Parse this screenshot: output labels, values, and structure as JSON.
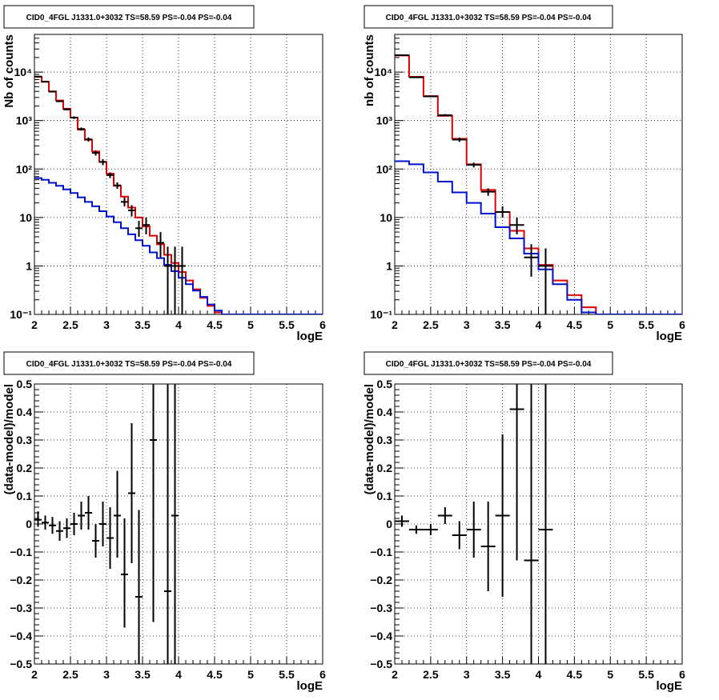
{
  "colors": {
    "data": "#000000",
    "total_model": "#e00000",
    "component_model": "#0010d0",
    "grid": "#000000"
  },
  "chart_data": [
    {
      "type": "line",
      "title": "CID0_4FGL J1331.0+3032 TS=58.59 PS=-0.04 PS=-0.04",
      "xlabel": "logE",
      "ylabel": "Nb of counts",
      "xlim": [
        2,
        6
      ],
      "ylim": [
        0.1,
        60000
      ],
      "log_y": true,
      "grid": true,
      "x_ticks": [
        "2",
        "2.5",
        "3",
        "3.5",
        "4",
        "4.5",
        "5",
        "5.5",
        "6"
      ],
      "y_ticks": [
        {
          "value": 0.1,
          "label": "10⁻¹"
        },
        {
          "value": 1,
          "label": "1"
        },
        {
          "value": 10,
          "label": "10"
        },
        {
          "value": 100,
          "label": "10²"
        },
        {
          "value": 1000,
          "label": "10³"
        },
        {
          "value": 10000,
          "label": "10⁴"
        }
      ],
      "bin_edges": [
        2.0,
        2.1,
        2.2,
        2.3,
        2.4,
        2.5,
        2.6,
        2.7,
        2.8,
        2.9,
        3.0,
        3.1,
        3.2,
        3.3,
        3.4,
        3.5,
        3.6,
        3.7,
        3.8,
        3.9,
        4.0,
        4.1,
        4.2,
        4.3,
        4.4,
        4.5,
        4.6,
        4.7,
        4.8,
        4.9,
        5.0,
        5.1,
        5.2,
        5.3,
        5.4,
        5.5,
        5.6,
        5.7,
        5.8,
        5.9,
        6.0
      ],
      "series": [
        {
          "role": "total_model",
          "values": [
            8000,
            6300,
            4000,
            2600,
            1750,
            1150,
            650,
            400,
            230,
            140,
            80,
            45,
            27,
            16,
            10,
            6.5,
            4.2,
            2.8,
            1.7,
            1.15,
            0.75,
            0.5,
            0.33,
            0.22,
            0.15,
            0.11,
            0.1,
            0.1,
            0.1,
            0.1,
            0.1,
            0.1,
            0.1,
            0.1,
            0.1,
            0.1,
            0.1,
            0.1,
            0.1,
            0.1
          ]
        },
        {
          "role": "component_model",
          "values": [
            65,
            60,
            52,
            45,
            38,
            32,
            26,
            21,
            17,
            13.5,
            10.5,
            8,
            6,
            4.5,
            3.4,
            2.6,
            1.9,
            1.45,
            1.05,
            0.78,
            0.57,
            0.42,
            0.31,
            0.23,
            0.16,
            0.12,
            0.1,
            0.1,
            0.1,
            0.1,
            0.1,
            0.1,
            0.1,
            0.1,
            0.1,
            0.1,
            0.1,
            0.1,
            0.1,
            0.1
          ]
        },
        {
          "role": "data",
          "points": [
            {
              "x": 2.05,
              "y": 8100,
              "lo": 7930,
              "hi": 8270
            },
            {
              "x": 2.15,
              "y": 6350,
              "lo": 6190,
              "hi": 6510
            },
            {
              "x": 2.25,
              "y": 3950,
              "lo": 3820,
              "hi": 4080
            },
            {
              "x": 2.35,
              "y": 2500,
              "lo": 2400,
              "hi": 2600
            },
            {
              "x": 2.45,
              "y": 1700,
              "lo": 1620,
              "hi": 1780
            },
            {
              "x": 2.55,
              "y": 1150,
              "lo": 1080,
              "hi": 1220
            },
            {
              "x": 2.65,
              "y": 670,
              "lo": 620,
              "hi": 720
            },
            {
              "x": 2.75,
              "y": 410,
              "lo": 370,
              "hi": 450
            },
            {
              "x": 2.85,
              "y": 215,
              "lo": 190,
              "hi": 240
            },
            {
              "x": 2.95,
              "y": 140,
              "lo": 120,
              "hi": 160
            },
            {
              "x": 3.05,
              "y": 75,
              "lo": 65,
              "hi": 85
            },
            {
              "x": 3.15,
              "y": 46,
              "lo": 39,
              "hi": 53
            },
            {
              "x": 3.25,
              "y": 21,
              "lo": 17,
              "hi": 26
            },
            {
              "x": 3.35,
              "y": 14,
              "lo": 10.5,
              "hi": 18
            },
            {
              "x": 3.45,
              "y": 6,
              "lo": 4,
              "hi": 8.5
            },
            {
              "x": 3.55,
              "y": 7,
              "lo": 4.5,
              "hi": 10
            },
            {
              "x": 3.75,
              "y": 3,
              "lo": 1.5,
              "hi": 5
            },
            {
              "x": 3.85,
              "y": 1,
              "lo": 0.1,
              "hi": 2.5
            },
            {
              "x": 3.95,
              "y": 1,
              "lo": 0.1,
              "hi": 2.5
            },
            {
              "x": 4.05,
              "y": 1,
              "lo": 0.1,
              "hi": 2.5
            }
          ]
        }
      ]
    },
    {
      "type": "line",
      "title": "CID0_4FGL J1331.0+3032 TS=58.59 PS=-0.04 PS=-0.04",
      "xlabel": "logE",
      "ylabel": "nb of counts",
      "xlim": [
        2,
        6
      ],
      "ylim": [
        0.1,
        60000
      ],
      "log_y": true,
      "grid": true,
      "x_ticks": [
        "2",
        "2.5",
        "3",
        "3.5",
        "4",
        "4.5",
        "5",
        "5.5",
        "6"
      ],
      "y_ticks": [
        {
          "value": 0.1,
          "label": "10⁻¹"
        },
        {
          "value": 1,
          "label": "1"
        },
        {
          "value": 10,
          "label": "10"
        },
        {
          "value": 100,
          "label": "10²"
        },
        {
          "value": 1000,
          "label": "10³"
        },
        {
          "value": 10000,
          "label": "10⁴"
        }
      ],
      "bin_edges": [
        2.0,
        2.2,
        2.4,
        2.6,
        2.8,
        3.0,
        3.2,
        3.4,
        3.6,
        3.8,
        4.0,
        4.2,
        4.4,
        4.6,
        4.8,
        5.0,
        5.2,
        5.4,
        5.6,
        5.8,
        6.0
      ],
      "series": [
        {
          "role": "total_model",
          "values": [
            22000,
            8000,
            3200,
            1250,
            420,
            125,
            37,
            13,
            5.3,
            2.3,
            1.05,
            0.5,
            0.25,
            0.14,
            0.1,
            0.1,
            0.1,
            0.1,
            0.1,
            0.1
          ]
        },
        {
          "role": "component_model",
          "values": [
            145,
            125,
            85,
            55,
            33,
            20,
            12,
            6.3,
            3.7,
            1.8,
            0.85,
            0.42,
            0.2,
            0.11,
            0.1,
            0.1,
            0.1,
            0.1,
            0.1,
            0.1
          ]
        },
        {
          "role": "data",
          "points": [
            {
              "x": 2.1,
              "y": 22300,
              "lo": 22000,
              "hi": 22600
            },
            {
              "x": 2.3,
              "y": 7800,
              "lo": 7620,
              "hi": 7980
            },
            {
              "x": 2.5,
              "y": 3150,
              "lo": 3040,
              "hi": 3260
            },
            {
              "x": 2.7,
              "y": 1290,
              "lo": 1220,
              "hi": 1360
            },
            {
              "x": 2.9,
              "y": 405,
              "lo": 365,
              "hi": 445
            },
            {
              "x": 3.1,
              "y": 122,
              "lo": 108,
              "hi": 136
            },
            {
              "x": 3.3,
              "y": 34,
              "lo": 28,
              "hi": 40
            },
            {
              "x": 3.5,
              "y": 13,
              "lo": 10,
              "hi": 17
            },
            {
              "x": 3.7,
              "y": 7,
              "lo": 4.5,
              "hi": 10
            },
            {
              "x": 3.9,
              "y": 1.5,
              "lo": 0.6,
              "hi": 2.8
            },
            {
              "x": 4.1,
              "y": 1,
              "lo": 0.1,
              "hi": 2.3
            }
          ]
        }
      ]
    },
    {
      "type": "scatter",
      "title": "CID0_4FGL J1331.0+3032 TS=58.59 PS=-0.04 PS=-0.04",
      "xlabel": "logE",
      "ylabel": "(data-model)/model",
      "xlim": [
        2,
        6
      ],
      "ylim": [
        -0.5,
        0.5
      ],
      "log_y": false,
      "grid": true,
      "x_ticks": [
        "2",
        "2.5",
        "3",
        "3.5",
        "4",
        "4.5",
        "5",
        "5.5",
        "6"
      ],
      "y_ticks": [
        {
          "value": -0.5,
          "label": "−0.5"
        },
        {
          "value": -0.4,
          "label": "−0.4"
        },
        {
          "value": -0.3,
          "label": "−0.3"
        },
        {
          "value": -0.2,
          "label": "−0.2"
        },
        {
          "value": -0.1,
          "label": "−0.1"
        },
        {
          "value": 0,
          "label": "0"
        },
        {
          "value": 0.1,
          "label": "0.1"
        },
        {
          "value": 0.2,
          "label": "0.2"
        },
        {
          "value": 0.3,
          "label": "0.3"
        },
        {
          "value": 0.4,
          "label": "0.4"
        },
        {
          "value": 0.5,
          "label": "0.5"
        }
      ],
      "half_width": 0.05,
      "series": [
        {
          "role": "data",
          "points": [
            {
              "x": 2.05,
              "y": 0.015,
              "lo": -0.01,
              "hi": 0.045
            },
            {
              "x": 2.15,
              "y": 0.005,
              "lo": -0.02,
              "hi": 0.03
            },
            {
              "x": 2.25,
              "y": -0.005,
              "lo": -0.035,
              "hi": 0.025
            },
            {
              "x": 2.35,
              "y": -0.025,
              "lo": -0.06,
              "hi": 0.01
            },
            {
              "x": 2.45,
              "y": -0.015,
              "lo": -0.05,
              "hi": 0.02
            },
            {
              "x": 2.55,
              "y": 0.0,
              "lo": -0.04,
              "hi": 0.04
            },
            {
              "x": 2.65,
              "y": 0.03,
              "lo": -0.02,
              "hi": 0.08
            },
            {
              "x": 2.75,
              "y": 0.04,
              "lo": -0.02,
              "hi": 0.1
            },
            {
              "x": 2.85,
              "y": -0.06,
              "lo": -0.12,
              "hi": 0.0
            },
            {
              "x": 2.95,
              "y": 0.0,
              "lo": -0.08,
              "hi": 0.08
            },
            {
              "x": 3.05,
              "y": -0.05,
              "lo": -0.16,
              "hi": 0.06
            },
            {
              "x": 3.15,
              "y": 0.03,
              "lo": -0.12,
              "hi": 0.19
            },
            {
              "x": 3.25,
              "y": -0.18,
              "lo": -0.37,
              "hi": 0.02
            },
            {
              "x": 3.35,
              "y": 0.11,
              "lo": -0.14,
              "hi": 0.36
            },
            {
              "x": 3.45,
              "y": -0.26,
              "lo": -0.5,
              "hi": 0.05
            },
            {
              "x": 3.65,
              "y": 0.3,
              "lo": -0.35,
              "hi": 0.95
            },
            {
              "x": 3.85,
              "y": -0.24,
              "lo": -0.5,
              "hi": 0.6
            },
            {
              "x": 3.95,
              "y": 0.03,
              "lo": -0.5,
              "hi": 0.9
            }
          ]
        }
      ]
    },
    {
      "type": "scatter",
      "title": "CID0_4FGL J1331.0+3032 TS=58.59 PS=-0.04 PS=-0.04",
      "xlabel": "logE",
      "ylabel": "(data-model)/model",
      "xlim": [
        2,
        6
      ],
      "ylim": [
        -0.5,
        0.5
      ],
      "log_y": false,
      "grid": true,
      "x_ticks": [
        "2",
        "2.5",
        "3",
        "3.5",
        "4",
        "4.5",
        "5",
        "5.5",
        "6"
      ],
      "y_ticks": [
        {
          "value": -0.5,
          "label": "−0.5"
        },
        {
          "value": -0.4,
          "label": "−0.4"
        },
        {
          "value": -0.3,
          "label": "−0.3"
        },
        {
          "value": -0.2,
          "label": "−0.2"
        },
        {
          "value": -0.1,
          "label": "−0.1"
        },
        {
          "value": 0,
          "label": "0"
        },
        {
          "value": 0.1,
          "label": "0.1"
        },
        {
          "value": 0.2,
          "label": "0.2"
        },
        {
          "value": 0.3,
          "label": "0.3"
        },
        {
          "value": 0.4,
          "label": "0.4"
        },
        {
          "value": 0.5,
          "label": "0.5"
        }
      ],
      "half_width": 0.1,
      "series": [
        {
          "role": "data",
          "points": [
            {
              "x": 2.1,
              "y": 0.01,
              "lo": -0.01,
              "hi": 0.03
            },
            {
              "x": 2.3,
              "y": -0.02,
              "lo": -0.035,
              "hi": -0.005
            },
            {
              "x": 2.5,
              "y": -0.02,
              "lo": -0.04,
              "hi": 0.0
            },
            {
              "x": 2.7,
              "y": 0.03,
              "lo": 0.0,
              "hi": 0.06
            },
            {
              "x": 2.9,
              "y": -0.04,
              "lo": -0.09,
              "hi": 0.01
            },
            {
              "x": 3.1,
              "y": -0.02,
              "lo": -0.12,
              "hi": 0.08
            },
            {
              "x": 3.3,
              "y": -0.08,
              "lo": -0.24,
              "hi": 0.08
            },
            {
              "x": 3.5,
              "y": 0.03,
              "lo": -0.26,
              "hi": 0.32
            },
            {
              "x": 3.7,
              "y": 0.41,
              "lo": -0.13,
              "hi": 0.95
            },
            {
              "x": 3.9,
              "y": -0.13,
              "lo": -0.5,
              "hi": 0.6
            },
            {
              "x": 4.1,
              "y": -0.02,
              "lo": -0.5,
              "hi": 0.8
            }
          ]
        }
      ]
    }
  ]
}
